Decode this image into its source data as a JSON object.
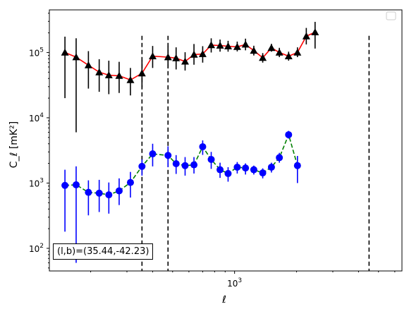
{
  "chart_data": {
    "type": "scatter",
    "xlabel": "ℓ",
    "ylabel": "C_ℓ [mK²]",
    "xscale": "log",
    "yscale": "log",
    "xlim": [
      126,
      6500
    ],
    "ylim": [
      45,
      450000
    ],
    "grid": false,
    "legend": "top-right (empty)",
    "annotation": "(l,b)=(35.44,-42.23)",
    "x_tick_labels": [
      {
        "value": 1000,
        "label": "10",
        "exp": "3"
      }
    ],
    "y_tick_labels": [
      {
        "value": 100,
        "label": "10",
        "exp": "2"
      },
      {
        "value": 1000,
        "label": "10",
        "exp": "3"
      },
      {
        "value": 10000,
        "label": "10",
        "exp": "4"
      },
      {
        "value": 100000,
        "label": "10",
        "exp": "5"
      }
    ],
    "vlines": [
      355,
      475,
      4500
    ],
    "series": [
      {
        "color": "#ff0000",
        "marker": "triangle",
        "marker_color": "#000000",
        "errbar_color": "#000000",
        "linestyle": "solid",
        "x": [
          150,
          170,
          195,
          220,
          245,
          275,
          312,
          355,
          400,
          475,
          520,
          575,
          635,
          700,
          770,
          850,
          930,
          1030,
          1130,
          1240,
          1370,
          1510,
          1650,
          1830,
          2020,
          2230,
          2460,
          2720,
          3000,
          3300,
          3650,
          3950
        ],
        "y": [
          100000,
          85000,
          64000,
          50000,
          45000,
          44000,
          38000,
          48000,
          88000,
          85000,
          82000,
          73000,
          93000,
          95000,
          130000,
          128000,
          125000,
          122000,
          133000,
          107000,
          83000,
          118000,
          100000,
          88000,
          100000,
          178000,
          205000,
          0,
          0,
          0,
          0,
          0
        ],
        "yerr_low": [
          80000,
          79000,
          36000,
          25000,
          22000,
          20000,
          16000,
          19000,
          30000,
          28000,
          27000,
          20000,
          28000,
          25000,
          30000,
          25000,
          22000,
          18000,
          25000,
          17000,
          13000,
          15000,
          15000,
          13000,
          15000,
          45000,
          90000,
          0,
          0,
          0,
          0,
          0
        ],
        "yerr_high": [
          75000,
          80000,
          41000,
          29000,
          30000,
          28000,
          20000,
          28000,
          38000,
          40000,
          38000,
          28000,
          42000,
          30000,
          35000,
          30000,
          26000,
          25000,
          30000,
          20000,
          15000,
          18000,
          18000,
          15000,
          20000,
          60000,
          90000,
          0,
          0,
          0,
          0,
          0
        ]
      },
      {
        "color": "#008000",
        "marker": "circle",
        "marker_color": "#0000ff",
        "errbar_color": "#0000ff",
        "linestyle": "dashed",
        "x": [
          150,
          170,
          195,
          220,
          245,
          275,
          312,
          355,
          400,
          475,
          520,
          575,
          635,
          700,
          770,
          850,
          930,
          1030,
          1130,
          1240,
          1370,
          1510,
          1650,
          1830,
          2020,
          2230,
          2460
        ],
        "y": [
          920,
          940,
          720,
          700,
          660,
          760,
          1020,
          1800,
          2800,
          2650,
          1980,
          1850,
          1900,
          3600,
          2300,
          1600,
          1400,
          1750,
          1700,
          1600,
          1430,
          1750,
          2450,
          5500,
          1850,
          0,
          0
        ],
        "yerr_low": [
          740,
          880,
          400,
          340,
          320,
          300,
          420,
          500,
          1000,
          900,
          600,
          550,
          500,
          900,
          650,
          400,
          350,
          350,
          350,
          250,
          250,
          300,
          400,
          700,
          850,
          0,
          0
        ],
        "yerr_high": [
          680,
          860,
          380,
          420,
          360,
          420,
          460,
          500,
          1200,
          1000,
          700,
          650,
          600,
          900,
          700,
          450,
          350,
          350,
          300,
          250,
          250,
          300,
          450,
          800,
          750,
          0,
          0
        ]
      }
    ]
  }
}
